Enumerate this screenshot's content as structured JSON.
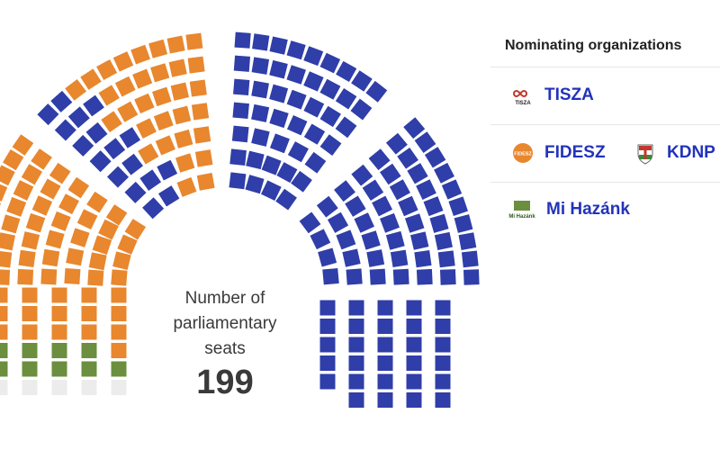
{
  "center": {
    "label": "Number of parliamentary seats",
    "total": "199"
  },
  "legend": {
    "title": "Nominating organizations",
    "parties": [
      {
        "name": "TISZA",
        "logo_text": "TISZA",
        "color": "#2f3ea8"
      },
      {
        "name": "FIDESZ",
        "logo_text": "FIDESZ",
        "color": "#e8872e"
      },
      {
        "name": "KDNP",
        "logo_text": "",
        "color": "#e8872e"
      },
      {
        "name": "Mi Hazánk",
        "logo_text": "Mi Hazánk",
        "color": "#6b8f3e"
      }
    ]
  },
  "chart_data": {
    "type": "parliament",
    "total_seats": 199,
    "series": [
      {
        "name": "FIDESZ",
        "color": "#e8872e"
      },
      {
        "name": "Mi Hazánk",
        "color": "#6b8f3e"
      },
      {
        "name": "TISZA",
        "color": "#2f3ea8"
      }
    ],
    "undecided_color": "#ececec"
  }
}
